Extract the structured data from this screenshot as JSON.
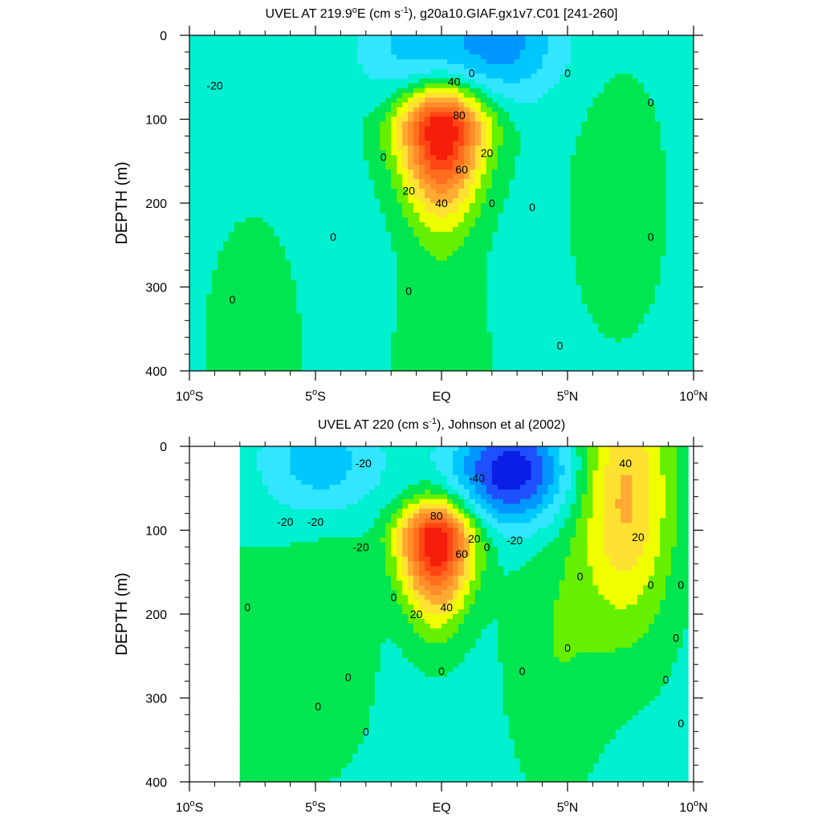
{
  "chart_data": [
    {
      "type": "heatmap",
      "subtype": "filled-contour depth-latitude section",
      "title_text": "UVEL AT 219.9",
      "title_sup1": "o",
      "title_after_sup1": "E (cm s",
      "title_sup2": "-1",
      "title_end": "), g20a10.GIAF.gx1v7.C01 [241-260]",
      "ylabel": "DEPTH (m)",
      "xlim": [
        -10,
        10
      ],
      "ylim": [
        400,
        0
      ],
      "y_reversed": true,
      "x_ticks": [
        {
          "value": -10,
          "num": "10",
          "sup": "o",
          "hem": "S"
        },
        {
          "value": -5,
          "num": "5",
          "sup": "o",
          "hem": "S"
        },
        {
          "value": 0,
          "num": "EQ",
          "sup": "",
          "hem": ""
        },
        {
          "value": 5,
          "num": "5",
          "sup": "o",
          "hem": "N"
        },
        {
          "value": 10,
          "num": "10",
          "sup": "o",
          "hem": "N"
        }
      ],
      "y_ticks": [
        0,
        100,
        200,
        300,
        400
      ],
      "contour_interval": 10,
      "background_color": "#00f0d0",
      "features": [
        {
          "kind": "jet",
          "lat": 0,
          "depth": 110,
          "peak": 95,
          "lat_hw": 2.0,
          "depth_top": 35,
          "depth_bot": 280
        },
        {
          "kind": "westward",
          "lat": -1.0,
          "depth": 15,
          "min": -20
        },
        {
          "kind": "westward",
          "lat": 2.5,
          "depth": 10,
          "min": -30
        },
        {
          "kind": "eastward",
          "lat": 7.0,
          "depth": 200,
          "max": 9
        },
        {
          "kind": "eastward",
          "lat": -7.5,
          "depth": 380,
          "max": 9
        },
        {
          "kind": "eastward",
          "lat": 0.0,
          "depth": 390,
          "max": 9
        }
      ],
      "contour_labels": [
        {
          "text": "-20",
          "lat": -9.0,
          "depth": 60
        },
        {
          "text": "40",
          "lat": 0.5,
          "depth": 55
        },
        {
          "text": "0",
          "lat": 1.2,
          "depth": 45
        },
        {
          "text": "80",
          "lat": 0.7,
          "depth": 95
        },
        {
          "text": "20",
          "lat": 1.8,
          "depth": 140
        },
        {
          "text": "60",
          "lat": 0.8,
          "depth": 160
        },
        {
          "text": "0",
          "lat": -2.3,
          "depth": 145
        },
        {
          "text": "20",
          "lat": -1.3,
          "depth": 185
        },
        {
          "text": "40",
          "lat": 0.0,
          "depth": 200
        },
        {
          "text": "0",
          "lat": 2.0,
          "depth": 200
        },
        {
          "text": "0",
          "lat": 3.6,
          "depth": 205
        },
        {
          "text": "0",
          "lat": 5.0,
          "depth": 45
        },
        {
          "text": "0",
          "lat": 8.3,
          "depth": 80
        },
        {
          "text": "0",
          "lat": 8.3,
          "depth": 240
        },
        {
          "text": "0",
          "lat": -4.3,
          "depth": 240
        },
        {
          "text": "0",
          "lat": -1.3,
          "depth": 305
        },
        {
          "text": "0",
          "lat": -8.3,
          "depth": 315
        },
        {
          "text": "0",
          "lat": 4.7,
          "depth": 370
        }
      ]
    },
    {
      "type": "heatmap",
      "subtype": "filled-contour depth-latitude section",
      "title_text": "UVEL AT 220 (cm s",
      "title_sup1": "-1",
      "title_after_sup1": "), Johnson et al (2002)",
      "title_sup2": "",
      "title_end": "",
      "ylabel": "DEPTH (m)",
      "xlim": [
        -10,
        10
      ],
      "ylim": [
        400,
        0
      ],
      "y_reversed": true,
      "x_ticks": [
        {
          "value": -10,
          "num": "10",
          "sup": "o",
          "hem": "S"
        },
        {
          "value": -5,
          "num": "5",
          "sup": "o",
          "hem": "S"
        },
        {
          "value": 0,
          "num": "EQ",
          "sup": "",
          "hem": ""
        },
        {
          "value": 5,
          "num": "5",
          "sup": "o",
          "hem": "N"
        },
        {
          "value": 10,
          "num": "10",
          "sup": "o",
          "hem": "N"
        }
      ],
      "y_ticks": [
        0,
        100,
        200,
        300,
        400
      ],
      "contour_interval": 10,
      "background_color": "#00f0d0",
      "data_lat_range": [
        -8,
        9.8
      ],
      "features": [
        {
          "kind": "jet",
          "lat": -0.2,
          "depth": 110,
          "peak": 95,
          "lat_hw": 1.7,
          "depth_top": 40,
          "depth_bot": 260
        },
        {
          "kind": "westward",
          "lat": 2.8,
          "depth": 30,
          "min": -55
        },
        {
          "kind": "westward",
          "lat": -4.8,
          "depth": 20,
          "min": -25
        },
        {
          "kind": "eastward",
          "lat": 7.3,
          "depth": 60,
          "max": 45
        },
        {
          "kind": "eastward",
          "lat": 4.5,
          "depth": 240,
          "max": 12
        },
        {
          "kind": "eastward",
          "lat": -4.5,
          "depth": 220,
          "max": 10
        },
        {
          "kind": "eastward",
          "lat": -7.5,
          "depth": 280,
          "max": 9
        }
      ],
      "contour_labels": [
        {
          "text": "-20",
          "lat": -3.2,
          "depth": 120
        },
        {
          "text": "-20",
          "lat": -3.1,
          "depth": 20
        },
        {
          "text": "-20",
          "lat": -6.2,
          "depth": 90
        },
        {
          "text": "-20",
          "lat": -5.0,
          "depth": 90
        },
        {
          "text": "-40",
          "lat": 1.4,
          "depth": 38
        },
        {
          "text": "-20",
          "lat": 2.9,
          "depth": 112
        },
        {
          "text": "80",
          "lat": -0.2,
          "depth": 83
        },
        {
          "text": "20",
          "lat": 1.3,
          "depth": 110
        },
        {
          "text": "60",
          "lat": 0.8,
          "depth": 128
        },
        {
          "text": "0",
          "lat": 1.8,
          "depth": 120
        },
        {
          "text": "0",
          "lat": -1.9,
          "depth": 180
        },
        {
          "text": "20",
          "lat": -1.0,
          "depth": 200
        },
        {
          "text": "40",
          "lat": 0.2,
          "depth": 192
        },
        {
          "text": "0",
          "lat": -7.7,
          "depth": 192
        },
        {
          "text": "0",
          "lat": -3.7,
          "depth": 275
        },
        {
          "text": "0",
          "lat": -4.9,
          "depth": 310
        },
        {
          "text": "0",
          "lat": -3.0,
          "depth": 340
        },
        {
          "text": "0",
          "lat": 0.0,
          "depth": 268
        },
        {
          "text": "0",
          "lat": 3.2,
          "depth": 268
        },
        {
          "text": "0",
          "lat": 5.0,
          "depth": 240
        },
        {
          "text": "0",
          "lat": 5.5,
          "depth": 155
        },
        {
          "text": "40",
          "lat": 7.3,
          "depth": 20
        },
        {
          "text": "20",
          "lat": 7.8,
          "depth": 108
        },
        {
          "text": "0",
          "lat": 8.3,
          "depth": 165
        },
        {
          "text": "0",
          "lat": 9.5,
          "depth": 165
        },
        {
          "text": "0",
          "lat": 9.3,
          "depth": 228
        },
        {
          "text": "0",
          "lat": 8.9,
          "depth": 278
        },
        {
          "text": "0",
          "lat": 9.5,
          "depth": 330
        }
      ]
    }
  ],
  "color_scale": [
    {
      "from": -60,
      "to": -50,
      "color": "#0a1ee6"
    },
    {
      "from": -50,
      "to": -40,
      "color": "#1e50ff"
    },
    {
      "from": -40,
      "to": -30,
      "color": "#0096ff"
    },
    {
      "from": -30,
      "to": -20,
      "color": "#00c8ff"
    },
    {
      "from": -20,
      "to": -10,
      "color": "#32e6ff"
    },
    {
      "from": -10,
      "to": 0,
      "color": "#00f0d0"
    },
    {
      "from": 0,
      "to": 10,
      "color": "#00e650"
    },
    {
      "from": 10,
      "to": 20,
      "color": "#64f000"
    },
    {
      "from": 20,
      "to": 30,
      "color": "#f0ff00"
    },
    {
      "from": 30,
      "to": 40,
      "color": "#ffe132"
    },
    {
      "from": 40,
      "to": 50,
      "color": "#ffaa32"
    },
    {
      "from": 50,
      "to": 60,
      "color": "#ff8c28"
    },
    {
      "from": 60,
      "to": 70,
      "color": "#ff6e1e"
    },
    {
      "from": 70,
      "to": 80,
      "color": "#ff4614"
    },
    {
      "from": 80,
      "to": 90,
      "color": "#f51e0a"
    },
    {
      "from": 90,
      "to": 100,
      "color": "#d20000"
    }
  ]
}
